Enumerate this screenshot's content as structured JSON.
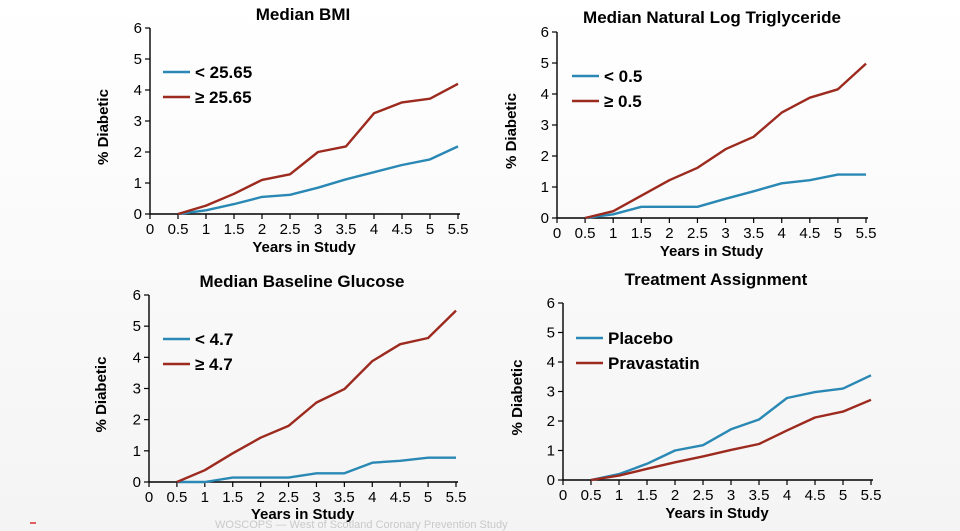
{
  "colors": {
    "blue": "#2a88b4",
    "red": "#9c2a1e",
    "axis": "#000000"
  },
  "footnote": "WOSCOPS — West of Scotland Coronary Prevention Study",
  "chart_data": [
    {
      "type": "line",
      "title": "Median BMI",
      "xlabel": "Years in Study",
      "ylabel": "% Diabetic",
      "categories": [
        "0",
        "0.5",
        "1",
        "1.5",
        "2",
        "2.5",
        "3",
        "3.5",
        "4",
        "4.5",
        "5",
        "5.5"
      ],
      "xlim": [
        0,
        5.5
      ],
      "ylim": [
        0,
        6
      ],
      "yticks": [
        "0",
        "1",
        "2",
        "3",
        "4",
        "5",
        "6"
      ],
      "legend_position": "top-left",
      "series": [
        {
          "name": "< 25.65",
          "color": "#2a88b4",
          "x": [
            0.5,
            1,
            1.5,
            2,
            2.5,
            3,
            3.5,
            4,
            4.5,
            5,
            5.5
          ],
          "values": [
            0.0,
            0.12,
            0.32,
            0.55,
            0.62,
            0.85,
            1.12,
            1.35,
            1.58,
            1.76,
            2.18
          ]
        },
        {
          "name": "≥ 25.65",
          "color": "#9c2a1e",
          "x": [
            0.5,
            1,
            1.5,
            2,
            2.5,
            3,
            3.5,
            4,
            4.5,
            5,
            5.5
          ],
          "values": [
            0.0,
            0.27,
            0.65,
            1.1,
            1.28,
            2.0,
            2.18,
            3.25,
            3.6,
            3.72,
            4.2
          ]
        }
      ]
    },
    {
      "type": "line",
      "title": "Median Natural Log Triglyceride",
      "xlabel": "Years in Study",
      "ylabel": "% Diabetic",
      "categories": [
        "0",
        "0.5",
        "1",
        "1.5",
        "2",
        "2.5",
        "3",
        "3.5",
        "4",
        "4.5",
        "5",
        "5.5"
      ],
      "xlim": [
        0,
        5.5
      ],
      "ylim": [
        0,
        6
      ],
      "yticks": [
        "0",
        "1",
        "2",
        "3",
        "4",
        "5",
        "6"
      ],
      "legend_position": "top-left",
      "series": [
        {
          "name": "< 0.5",
          "color": "#2a88b4",
          "x": [
            0.5,
            1,
            1.5,
            2,
            2.5,
            3,
            3.5,
            4,
            4.5,
            5,
            5.5
          ],
          "values": [
            0.0,
            0.12,
            0.36,
            0.36,
            0.36,
            0.62,
            0.86,
            1.12,
            1.22,
            1.4,
            1.4
          ]
        },
        {
          "name": "≥ 0.5",
          "color": "#9c2a1e",
          "x": [
            0.5,
            1,
            1.5,
            2,
            2.5,
            3,
            3.5,
            4,
            4.5,
            5,
            5.5
          ],
          "values": [
            0.0,
            0.22,
            0.72,
            1.22,
            1.62,
            2.22,
            2.62,
            3.4,
            3.88,
            4.15,
            4.98
          ]
        }
      ]
    },
    {
      "type": "line",
      "title": "Median Baseline Glucose",
      "xlabel": "Years in Study",
      "ylabel": "% Diabetic",
      "categories": [
        "0",
        "0.5",
        "1",
        "1.5",
        "2",
        "2.5",
        "3",
        "3.5",
        "4",
        "4.5",
        "5",
        "5.5"
      ],
      "xlim": [
        0,
        5.5
      ],
      "ylim": [
        0,
        6
      ],
      "yticks": [
        "0",
        "1",
        "2",
        "3",
        "4",
        "5",
        "6"
      ],
      "legend_position": "top-left",
      "series": [
        {
          "name": "< 4.7",
          "color": "#2a88b4",
          "x": [
            0.5,
            1,
            1.5,
            2,
            2.5,
            3,
            3.5,
            4,
            4.5,
            5,
            5.5
          ],
          "values": [
            0.0,
            0.0,
            0.14,
            0.14,
            0.14,
            0.28,
            0.28,
            0.62,
            0.68,
            0.78,
            0.78
          ]
        },
        {
          "name": "≥ 4.7",
          "color": "#9c2a1e",
          "x": [
            0.5,
            1,
            1.5,
            2,
            2.5,
            3,
            3.5,
            4,
            4.5,
            5,
            5.5
          ],
          "values": [
            0.0,
            0.38,
            0.92,
            1.42,
            1.8,
            2.55,
            2.98,
            3.88,
            4.42,
            4.62,
            5.5
          ]
        }
      ]
    },
    {
      "type": "line",
      "title": "Treatment Assignment",
      "xlabel": "Years in Study",
      "ylabel": "% Diabetic",
      "categories": [
        "0",
        "0.5",
        "1",
        "1.5",
        "2",
        "2.5",
        "3",
        "3.5",
        "4",
        "4.5",
        "5",
        "5.5"
      ],
      "xlim": [
        0,
        5.5
      ],
      "ylim": [
        0,
        6
      ],
      "yticks": [
        "0",
        "1",
        "2",
        "3",
        "4",
        "5",
        "6"
      ],
      "legend_position": "top-left",
      "series": [
        {
          "name": "Placebo",
          "color": "#2a88b4",
          "x": [
            0.5,
            1,
            1.5,
            2,
            2.5,
            3,
            3.5,
            4,
            4.5,
            5,
            5.5
          ],
          "values": [
            0.0,
            0.2,
            0.55,
            1.0,
            1.18,
            1.72,
            2.05,
            2.78,
            2.98,
            3.1,
            3.55
          ]
        },
        {
          "name": "Pravastatin",
          "color": "#9c2a1e",
          "x": [
            0.5,
            1,
            1.5,
            2,
            2.5,
            3,
            3.5,
            4,
            4.5,
            5,
            5.5
          ],
          "values": [
            0.0,
            0.15,
            0.38,
            0.6,
            0.8,
            1.02,
            1.22,
            1.68,
            2.12,
            2.32,
            2.72
          ]
        }
      ]
    }
  ]
}
